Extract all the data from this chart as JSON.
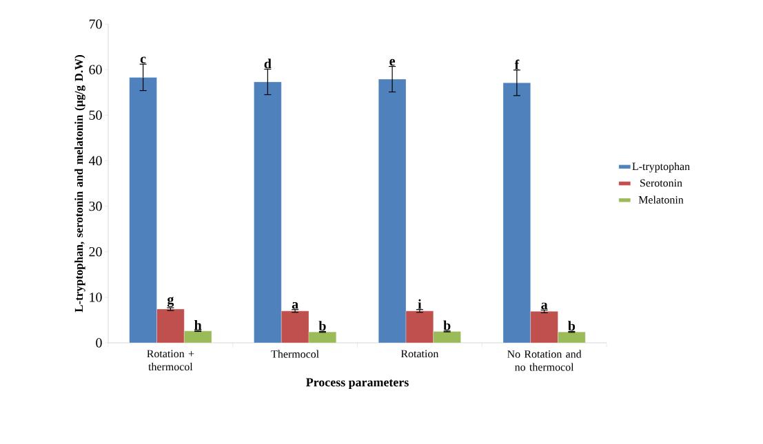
{
  "chart_data": {
    "type": "bar",
    "xlabel": "Process parameters",
    "ylabel": "L-tryptophan, serotonin and melatonin (µg/g D.W)",
    "categories": [
      "Rotation + thermocol",
      "Thermocol",
      "Rotation",
      "No Rotation and no thermocol"
    ],
    "series": [
      {
        "name": "L-tryptophan",
        "color": "#4f81bd",
        "values": [
          58.3,
          57.3,
          57.9,
          57.1
        ],
        "errors": [
          2.9,
          2.8,
          2.8,
          2.8
        ],
        "value_labels": [
          "c",
          "d",
          "e",
          "f"
        ]
      },
      {
        "name": "Serotonin",
        "color": "#c0504d",
        "values": [
          7.4,
          7.0,
          7.0,
          6.9
        ],
        "errors": [
          0.3,
          0.3,
          0.3,
          0.3
        ],
        "value_labels": [
          "g",
          "a",
          "i",
          "a"
        ]
      },
      {
        "name": "Melatonin",
        "color": "#9bbb59",
        "values": [
          2.6,
          2.4,
          2.5,
          2.4
        ],
        "errors": [
          0.1,
          0.1,
          0.1,
          0.1
        ],
        "value_labels": [
          "h",
          "b",
          "b",
          "b"
        ]
      }
    ],
    "ylim": [
      0,
      70
    ],
    "yticks": [
      0,
      10,
      20,
      30,
      40,
      50,
      60,
      70
    ],
    "legend": "right",
    "grid": false
  }
}
